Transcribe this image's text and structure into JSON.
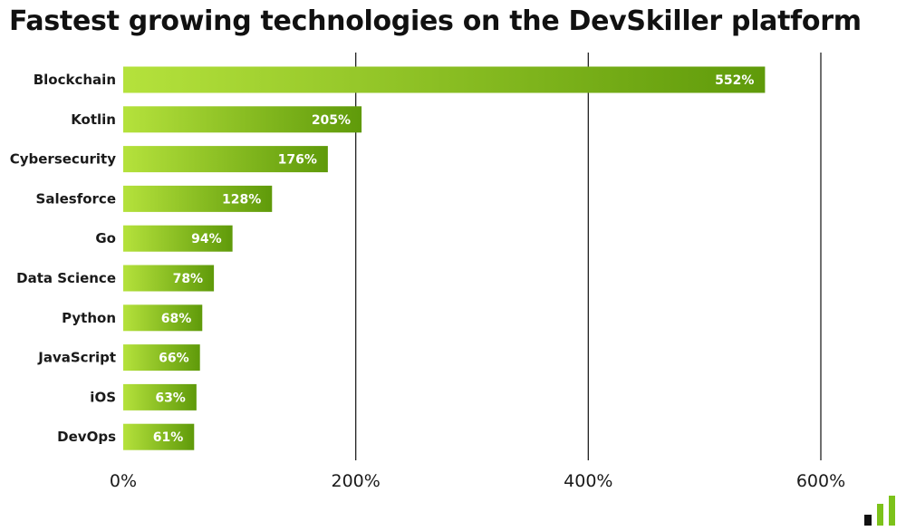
{
  "chart_data": {
    "type": "bar",
    "orientation": "horizontal",
    "title": "Fastest growing technologies on the DevSkiller platform",
    "xlabel": "",
    "ylabel": "",
    "categories": [
      "Blockchain",
      "Kotlin",
      "Cybersecurity",
      "Salesforce",
      "Go",
      "Data Science",
      "Python",
      "JavaScript",
      "iOS",
      "DevOps"
    ],
    "values": [
      552,
      205,
      176,
      128,
      94,
      78,
      68,
      66,
      63,
      61
    ],
    "value_labels": [
      "552%",
      "205%",
      "176%",
      "128%",
      "94%",
      "78%",
      "68%",
      "66%",
      "63%",
      "61%"
    ],
    "xlim": [
      0,
      600
    ],
    "ticks": [
      0,
      200,
      400,
      600
    ],
    "tick_labels": [
      "0%",
      "200%",
      "400%",
      "600%"
    ],
    "grid": "vertical",
    "legend": "none",
    "colors": {
      "bar_start": "#b5e23c",
      "bar_end": "#5f9a0a",
      "grid": "#222222",
      "logo_dark": "#111111",
      "logo_green": "#7cc21a"
    }
  }
}
